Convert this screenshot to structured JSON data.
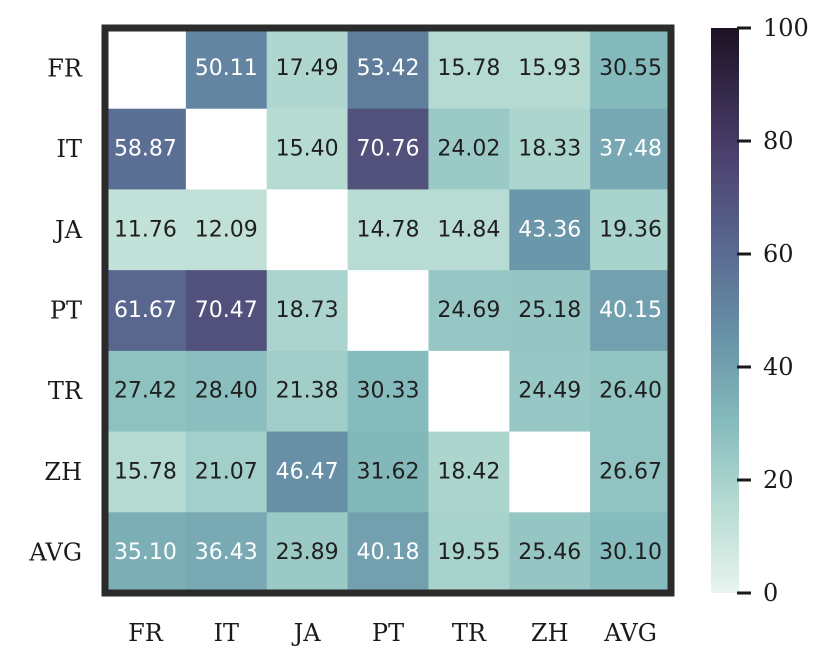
{
  "chart_data": {
    "type": "heatmap",
    "rows": [
      "FR",
      "IT",
      "JA",
      "PT",
      "TR",
      "ZH",
      "AVG"
    ],
    "columns": [
      "FR",
      "IT",
      "JA",
      "PT",
      "TR",
      "ZH",
      "AVG"
    ],
    "values": [
      [
        null,
        50.11,
        17.49,
        53.42,
        15.78,
        15.93,
        30.55
      ],
      [
        58.87,
        null,
        15.4,
        70.76,
        24.02,
        18.33,
        37.48
      ],
      [
        11.76,
        12.09,
        null,
        14.78,
        14.84,
        43.36,
        19.36
      ],
      [
        61.67,
        70.47,
        18.73,
        null,
        24.69,
        25.18,
        40.15
      ],
      [
        27.42,
        28.4,
        21.38,
        30.33,
        null,
        24.49,
        26.4
      ],
      [
        15.78,
        21.07,
        46.47,
        31.62,
        18.42,
        null,
        26.67
      ],
      [
        35.1,
        36.43,
        23.89,
        40.18,
        19.55,
        25.46,
        30.1
      ]
    ],
    "value_labels": [
      [
        "",
        "50.11",
        "17.49",
        "53.42",
        "15.78",
        "15.93",
        "30.55"
      ],
      [
        "58.87",
        "",
        "15.40",
        "70.76",
        "24.02",
        "18.33",
        "37.48"
      ],
      [
        "11.76",
        "12.09",
        "",
        "14.78",
        "14.84",
        "43.36",
        "19.36"
      ],
      [
        "61.67",
        "70.47",
        "18.73",
        "",
        "24.69",
        "25.18",
        "40.15"
      ],
      [
        "27.42",
        "28.40",
        "21.38",
        "30.33",
        "",
        "24.49",
        "26.40"
      ],
      [
        "15.78",
        "21.07",
        "46.47",
        "31.62",
        "18.42",
        "",
        "26.67"
      ],
      [
        "35.10",
        "36.43",
        "23.89",
        "40.18",
        "19.55",
        "25.46",
        "30.10"
      ]
    ],
    "colorbar": {
      "range": [
        0,
        100
      ],
      "ticks": [
        0,
        20,
        40,
        60,
        80,
        100
      ],
      "tick_labels": [
        "0",
        "20",
        "40",
        "60",
        "80",
        "100"
      ]
    },
    "colormap": [
      "#e8f4ef",
      "#b7dcd3",
      "#86bcbd",
      "#6893a8",
      "#5a6b92",
      "#4b3f6d",
      "#1c1223"
    ],
    "colormap_positions": [
      0,
      0.15,
      0.3,
      0.45,
      0.6,
      0.78,
      1
    ],
    "empty_cell_color": "#ffffff",
    "frame_color": "#2b2b2b"
  }
}
